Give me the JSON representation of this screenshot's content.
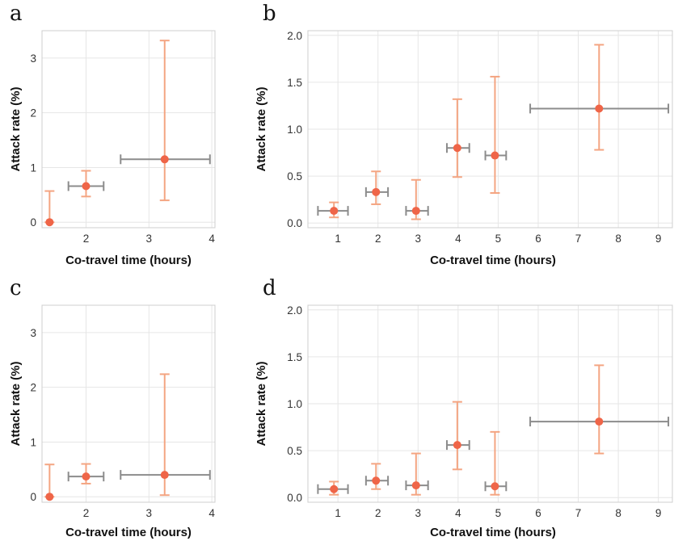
{
  "colors": {
    "point": "#ef6548",
    "y_error": "#f4a582",
    "x_error": "#8c8c8c",
    "grid": "#e6e6e6",
    "frame": "#cfcfcf"
  },
  "chart_data": [
    {
      "panel": "a",
      "type": "scatter",
      "xlabel": "Co-travel time (hours)",
      "ylabel": "Attack rate (%)",
      "xlim": [
        1.3,
        4.05
      ],
      "ylim": [
        -0.1,
        3.5
      ],
      "xticks": [
        2,
        3,
        4
      ],
      "yticks": [
        0,
        1,
        2,
        3
      ],
      "points": [
        {
          "x": 1.42,
          "y": 0.0,
          "ylo": 0.0,
          "yhi": 0.57,
          "xlo": null,
          "xhi": null
        },
        {
          "x": 2.0,
          "y": 0.66,
          "ylo": 0.47,
          "yhi": 0.94,
          "xlo": 1.72,
          "xhi": 2.28
        },
        {
          "x": 3.25,
          "y": 1.15,
          "ylo": 0.4,
          "yhi": 3.32,
          "xlo": 2.55,
          "xhi": 3.97
        }
      ]
    },
    {
      "panel": "b",
      "type": "scatter",
      "xlabel": "Co-travel time (hours)",
      "ylabel": "Attack rate (%)",
      "xlim": [
        0.25,
        9.35
      ],
      "ylim": [
        -0.05,
        2.05
      ],
      "xticks": [
        1,
        2,
        3,
        4,
        5,
        6,
        7,
        8,
        9
      ],
      "yticks": [
        0.0,
        0.5,
        1.0,
        1.5,
        2.0
      ],
      "ytick_labels": [
        "0.0",
        "0.5",
        "1.0",
        "1.5",
        "2.0"
      ],
      "points": [
        {
          "x": 0.9,
          "y": 0.13,
          "ylo": 0.06,
          "yhi": 0.22,
          "xlo": 0.5,
          "xhi": 1.25
        },
        {
          "x": 1.95,
          "y": 0.33,
          "ylo": 0.2,
          "yhi": 0.55,
          "xlo": 1.7,
          "xhi": 2.25
        },
        {
          "x": 2.95,
          "y": 0.13,
          "ylo": 0.04,
          "yhi": 0.46,
          "xlo": 2.7,
          "xhi": 3.25
        },
        {
          "x": 3.98,
          "y": 0.8,
          "ylo": 0.49,
          "yhi": 1.32,
          "xlo": 3.72,
          "xhi": 4.28
        },
        {
          "x": 4.92,
          "y": 0.72,
          "ylo": 0.32,
          "yhi": 1.56,
          "xlo": 4.68,
          "xhi": 5.2
        },
        {
          "x": 7.52,
          "y": 1.22,
          "ylo": 0.78,
          "yhi": 1.9,
          "xlo": 5.8,
          "xhi": 9.25
        }
      ]
    },
    {
      "panel": "c",
      "type": "scatter",
      "xlabel": "Co-travel time (hours)",
      "ylabel": "Attack rate (%)",
      "xlim": [
        1.3,
        4.05
      ],
      "ylim": [
        -0.1,
        3.5
      ],
      "xticks": [
        2,
        3,
        4
      ],
      "yticks": [
        0,
        1,
        2,
        3
      ],
      "points": [
        {
          "x": 1.42,
          "y": 0.0,
          "ylo": 0.0,
          "yhi": 0.59,
          "xlo": null,
          "xhi": null
        },
        {
          "x": 2.0,
          "y": 0.37,
          "ylo": 0.24,
          "yhi": 0.6,
          "xlo": 1.72,
          "xhi": 2.28
        },
        {
          "x": 3.25,
          "y": 0.4,
          "ylo": 0.03,
          "yhi": 2.24,
          "xlo": 2.55,
          "xhi": 3.97
        }
      ]
    },
    {
      "panel": "d",
      "type": "scatter",
      "xlabel": "Co-travel time (hours)",
      "ylabel": "Attack rate (%)",
      "xlim": [
        0.25,
        9.35
      ],
      "ylim": [
        -0.05,
        2.05
      ],
      "xticks": [
        1,
        2,
        3,
        4,
        5,
        6,
        7,
        8,
        9
      ],
      "yticks": [
        0.0,
        0.5,
        1.0,
        1.5,
        2.0
      ],
      "ytick_labels": [
        "0.0",
        "0.5",
        "1.0",
        "1.5",
        "2.0"
      ],
      "points": [
        {
          "x": 0.9,
          "y": 0.09,
          "ylo": 0.03,
          "yhi": 0.17,
          "xlo": 0.5,
          "xhi": 1.25
        },
        {
          "x": 1.95,
          "y": 0.18,
          "ylo": 0.09,
          "yhi": 0.36,
          "xlo": 1.7,
          "xhi": 2.25
        },
        {
          "x": 2.95,
          "y": 0.13,
          "ylo": 0.03,
          "yhi": 0.47,
          "xlo": 2.7,
          "xhi": 3.25
        },
        {
          "x": 3.98,
          "y": 0.56,
          "ylo": 0.3,
          "yhi": 1.02,
          "xlo": 3.72,
          "xhi": 4.28
        },
        {
          "x": 4.92,
          "y": 0.12,
          "ylo": 0.03,
          "yhi": 0.7,
          "xlo": 4.68,
          "xhi": 5.2
        },
        {
          "x": 7.52,
          "y": 0.81,
          "ylo": 0.47,
          "yhi": 1.41,
          "xlo": 5.8,
          "xhi": 9.25
        }
      ]
    }
  ]
}
